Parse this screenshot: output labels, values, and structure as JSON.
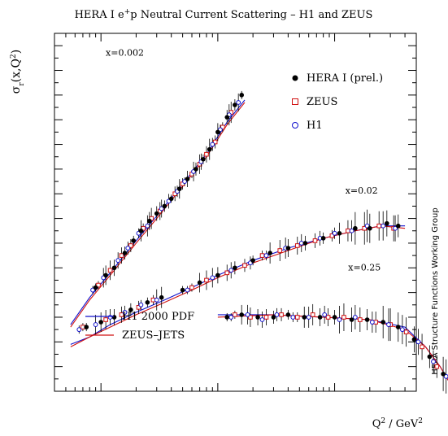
{
  "chart_data": {
    "type": "scatter",
    "title": "HERA I e",
    "title_sup": "+",
    "title_rest": "p Neutral Current Scattering – H1 and ZEUS",
    "ylabel": "σ",
    "ylabel_sub": "r",
    "ylabel_rest": "(x,Q",
    "ylabel_sup": "2",
    "ylabel_close": ")",
    "xlabel": "Q",
    "xlabel_sup": "2",
    "xlabel_rest": " / GeV",
    "xlabel_sup2": "2",
    "side_note": "HERA Structure Functions Working Group",
    "x_scale": "log",
    "xlim": [
      0.4,
      500
    ],
    "ylim": [
      0,
      1.45
    ],
    "grid": false,
    "legend_position": "top-right",
    "legend": [
      {
        "label": "HERA I (prel.)",
        "marker": "filled-circle",
        "color": "#000000"
      },
      {
        "label": "ZEUS",
        "marker": "open-square",
        "color": "#d01010"
      },
      {
        "label": "H1",
        "marker": "open-circle",
        "color": "#1010cc"
      }
    ],
    "fit_legend": [
      {
        "label": "H1 2000 PDF",
        "color": "#1010cc"
      },
      {
        "label": "ZEUS–JETS",
        "color": "#d01010"
      }
    ],
    "series": [
      {
        "label": "x=0.002",
        "label_at": [
          1.6,
          1.36
        ],
        "hera": [
          [
            0.9,
            0.42
          ],
          [
            1.1,
            0.47
          ],
          [
            1.3,
            0.5
          ],
          [
            1.6,
            0.56
          ],
          [
            1.9,
            0.61
          ],
          [
            2.2,
            0.65
          ],
          [
            2.6,
            0.69
          ],
          [
            3,
            0.72
          ],
          [
            3.5,
            0.75
          ],
          [
            4,
            0.78
          ],
          [
            4.7,
            0.82
          ],
          [
            5.5,
            0.86
          ],
          [
            6.5,
            0.9
          ],
          [
            7.5,
            0.94
          ],
          [
            8.5,
            0.98
          ],
          [
            10,
            1.05
          ],
          [
            12,
            1.11
          ],
          [
            14,
            1.16
          ],
          [
            16,
            1.2
          ]
        ],
        "zeus": [
          [
            0.95,
            0.43
          ],
          [
            1.2,
            0.49
          ],
          [
            1.5,
            0.55
          ],
          [
            1.8,
            0.59
          ],
          [
            2.3,
            0.66
          ],
          [
            2.7,
            0.7
          ],
          [
            3.2,
            0.73
          ],
          [
            4.3,
            0.8
          ],
          [
            5,
            0.84
          ],
          [
            6,
            0.88
          ],
          [
            7,
            0.92
          ],
          [
            8,
            0.96
          ],
          [
            9.5,
            1.01
          ],
          [
            11,
            1.07
          ],
          [
            13,
            1.13
          ]
        ],
        "h1": [
          [
            0.85,
            0.41
          ],
          [
            1.05,
            0.46
          ],
          [
            1.4,
            0.53
          ],
          [
            1.7,
            0.58
          ],
          [
            2.1,
            0.64
          ],
          [
            2.5,
            0.67
          ],
          [
            3.3,
            0.74
          ],
          [
            3.8,
            0.77
          ],
          [
            4.5,
            0.81
          ],
          [
            5.2,
            0.85
          ],
          [
            6.2,
            0.89
          ],
          [
            7.2,
            0.93
          ],
          [
            9,
            1
          ],
          [
            10.5,
            1.06
          ],
          [
            12.5,
            1.12
          ],
          [
            15,
            1.17
          ]
        ],
        "h1_2000_pdf": [
          [
            0.55,
            0.27
          ],
          [
            0.8,
            0.38
          ],
          [
            1.2,
            0.48
          ],
          [
            2,
            0.61
          ],
          [
            3,
            0.71
          ],
          [
            5,
            0.84
          ],
          [
            8,
            0.96
          ],
          [
            12,
            1.09
          ],
          [
            17,
            1.18
          ]
        ],
        "zeus_jets": [
          [
            0.55,
            0.26
          ],
          [
            0.8,
            0.37
          ],
          [
            1.2,
            0.47
          ],
          [
            2,
            0.6
          ],
          [
            3,
            0.7
          ],
          [
            5,
            0.83
          ],
          [
            8,
            0.95
          ],
          [
            12,
            1.08
          ],
          [
            17,
            1.17
          ]
        ]
      },
      {
        "label": "x=0.02",
        "label_at": [
          170,
          0.8
        ],
        "hera": [
          [
            5,
            0.41
          ],
          [
            7,
            0.44
          ],
          [
            10,
            0.47
          ],
          [
            14,
            0.5
          ],
          [
            20,
            0.53
          ],
          [
            28,
            0.56
          ],
          [
            40,
            0.58
          ],
          [
            56,
            0.6
          ],
          [
            80,
            0.62
          ],
          [
            110,
            0.64
          ],
          [
            150,
            0.66
          ],
          [
            200,
            0.66
          ],
          [
            280,
            0.68
          ],
          [
            350,
            0.67
          ]
        ],
        "zeus": [
          [
            6,
            0.42
          ],
          [
            8,
            0.45
          ],
          [
            12,
            0.48
          ],
          [
            17,
            0.51
          ],
          [
            24,
            0.55
          ],
          [
            34,
            0.57
          ],
          [
            48,
            0.59
          ],
          [
            68,
            0.61
          ],
          [
            95,
            0.63
          ],
          [
            130,
            0.65
          ],
          [
            180,
            0.66
          ],
          [
            240,
            0.67
          ],
          [
            320,
            0.66
          ]
        ],
        "h1": [
          [
            5.5,
            0.41
          ],
          [
            9,
            0.46
          ],
          [
            13,
            0.49
          ],
          [
            19,
            0.52
          ],
          [
            26,
            0.55
          ],
          [
            38,
            0.58
          ],
          [
            52,
            0.6
          ],
          [
            75,
            0.62
          ],
          [
            100,
            0.64
          ],
          [
            140,
            0.65
          ],
          [
            190,
            0.67
          ],
          [
            260,
            0.67
          ],
          [
            330,
            0.66
          ]
        ],
        "h1_2000_pdf": [
          [
            3.5,
            0.37
          ],
          [
            6,
            0.42
          ],
          [
            10,
            0.47
          ],
          [
            20,
            0.53
          ],
          [
            40,
            0.58
          ],
          [
            80,
            0.62
          ],
          [
            150,
            0.65
          ],
          [
            250,
            0.67
          ],
          [
            400,
            0.67
          ]
        ],
        "zeus_jets": [
          [
            3.5,
            0.36
          ],
          [
            6,
            0.41
          ],
          [
            10,
            0.46
          ],
          [
            20,
            0.52
          ],
          [
            40,
            0.57
          ],
          [
            80,
            0.62
          ],
          [
            150,
            0.65
          ],
          [
            250,
            0.67
          ],
          [
            400,
            0.66
          ]
        ],
        "extra_hera": [
          [
            0.75,
            0.26
          ],
          [
            1,
            0.28
          ],
          [
            1.3,
            0.3
          ],
          [
            1.8,
            0.33
          ],
          [
            2.5,
            0.36
          ],
          [
            3.3,
            0.38
          ]
        ],
        "extra_zeus": [
          [
            0.7,
            0.26
          ],
          [
            1.1,
            0.29
          ],
          [
            1.5,
            0.31
          ],
          [
            2.1,
            0.34
          ],
          [
            2.8,
            0.37
          ]
        ],
        "extra_h1": [
          [
            0.65,
            0.25
          ],
          [
            0.9,
            0.27
          ],
          [
            1.2,
            0.3
          ],
          [
            1.6,
            0.32
          ],
          [
            2.2,
            0.35
          ],
          [
            3,
            0.37
          ]
        ],
        "extra_fit_h1": [
          [
            0.55,
            0.19
          ],
          [
            0.8,
            0.22
          ],
          [
            1.2,
            0.27
          ],
          [
            2,
            0.32
          ],
          [
            3.5,
            0.37
          ]
        ],
        "extra_fit_zeus": [
          [
            0.55,
            0.18
          ],
          [
            0.8,
            0.22
          ],
          [
            1.2,
            0.26
          ],
          [
            2,
            0.31
          ],
          [
            3.5,
            0.36
          ]
        ]
      },
      {
        "label": "x=0.25",
        "label_at": [
          180,
          0.49
        ],
        "hera": [
          [
            12,
            0.3
          ],
          [
            16,
            0.31
          ],
          [
            22,
            0.3
          ],
          [
            30,
            0.3
          ],
          [
            40,
            0.31
          ],
          [
            55,
            0.3
          ],
          [
            75,
            0.3
          ],
          [
            100,
            0.3
          ],
          [
            140,
            0.29
          ],
          [
            190,
            0.29
          ],
          [
            260,
            0.28
          ],
          [
            350,
            0.26
          ],
          [
            480,
            0.21
          ],
          [
            650,
            0.14
          ],
          [
            850,
            0.07
          ]
        ],
        "zeus": [
          [
            14,
            0.31
          ],
          [
            19,
            0.3
          ],
          [
            26,
            0.3
          ],
          [
            35,
            0.31
          ],
          [
            48,
            0.3
          ],
          [
            65,
            0.31
          ],
          [
            88,
            0.3
          ],
          [
            120,
            0.3
          ],
          [
            165,
            0.29
          ],
          [
            225,
            0.28
          ],
          [
            300,
            0.27
          ],
          [
            410,
            0.24
          ],
          [
            560,
            0.18
          ],
          [
            750,
            0.1
          ]
        ],
        "h1": [
          [
            13,
            0.3
          ],
          [
            18,
            0.31
          ],
          [
            24,
            0.29
          ],
          [
            32,
            0.31
          ],
          [
            44,
            0.3
          ],
          [
            60,
            0.3
          ],
          [
            82,
            0.31
          ],
          [
            110,
            0.29
          ],
          [
            150,
            0.3
          ],
          [
            210,
            0.28
          ],
          [
            290,
            0.27
          ],
          [
            380,
            0.25
          ],
          [
            520,
            0.2
          ],
          [
            700,
            0.12
          ],
          [
            900,
            0.06
          ]
        ],
        "h1_2000_pdf": [
          [
            10,
            0.31
          ],
          [
            30,
            0.31
          ],
          [
            80,
            0.3
          ],
          [
            200,
            0.29
          ],
          [
            400,
            0.26
          ],
          [
            600,
            0.18
          ],
          [
            800,
            0.1
          ],
          [
            950,
            0.04
          ]
        ],
        "zeus_jets": [
          [
            10,
            0.3
          ],
          [
            30,
            0.31
          ],
          [
            80,
            0.3
          ],
          [
            200,
            0.29
          ],
          [
            400,
            0.25
          ],
          [
            600,
            0.18
          ],
          [
            800,
            0.1
          ],
          [
            950,
            0.04
          ]
        ]
      }
    ]
  }
}
